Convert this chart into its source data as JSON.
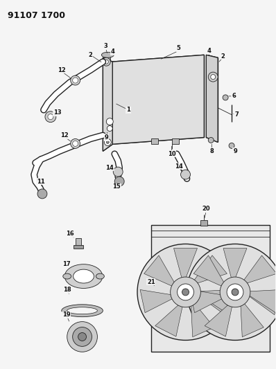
{
  "title": "91107 1700",
  "bg_color": "#f5f5f5",
  "title_color": "#111111",
  "title_fontsize": 9,
  "title_fontweight": "bold",
  "lc": "#222222",
  "label_fontsize": 6.0,
  "label_bold_fontsize": 7.0
}
